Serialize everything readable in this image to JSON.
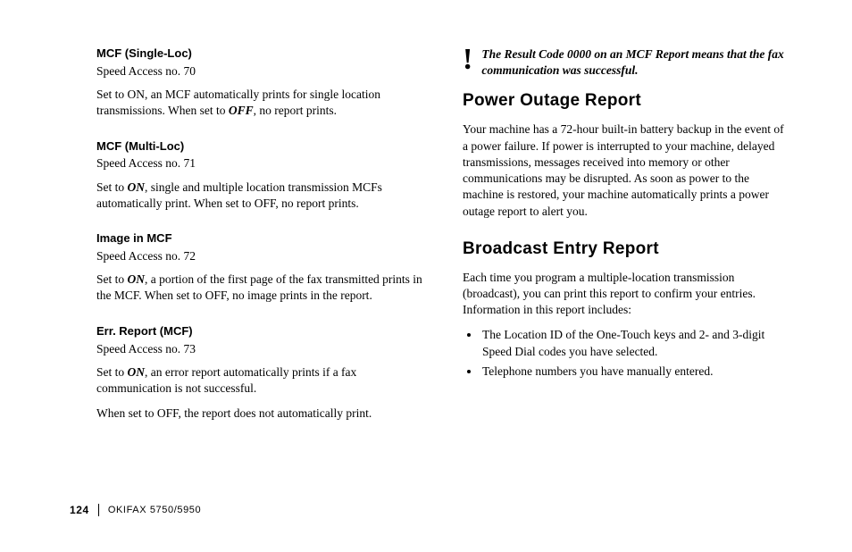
{
  "left": {
    "s1": {
      "title": "MCF (Single-Loc)",
      "access": "Speed Access no. 70",
      "bodyA": "Set to ON, an MCF automatically prints for single location transmissions. When set to ",
      "bodyEm": "OFF",
      "bodyB": ", no report prints."
    },
    "s2": {
      "title": "MCF (Multi-Loc)",
      "access": "Speed Access no. 71",
      "bodyA": "Set to ",
      "bodyEm": "ON",
      "bodyB": ", single and multiple location transmission MCFs automatically print. When set to OFF, no report prints."
    },
    "s3": {
      "title": "Image in MCF",
      "access": "Speed Access no. 72",
      "bodyA": "Set to ",
      "bodyEm": "ON",
      "bodyB": ", a portion of the first page of the fax transmitted prints in the MCF. When set to OFF, no image prints in the report."
    },
    "s4": {
      "title": "Err. Report (MCF)",
      "access": "Speed Access no. 73",
      "bodyA": "Set to ",
      "bodyEm": "ON",
      "bodyB": ", an error report automatically prints if a fax communication is not successful.",
      "body2": "When set to OFF, the report does not automatically print."
    }
  },
  "right": {
    "note": {
      "icon": "!",
      "text": "The Result Code 0000 on an MCF Report means that the fax communication was successful."
    },
    "h1": "Power Outage Report",
    "p1": "Your machine has a 72-hour built-in battery backup in the event of a power failure. If power is interrupted to your machine, delayed transmissions, messages received into memory or other communications may be disrupted. As soon as power to the machine is restored, your machine automatically prints a power outage report to alert you.",
    "h2": "Broadcast Entry Report",
    "p2": "Each time you program a multiple-location transmission (broadcast), you can print this report to confirm your entries. Information in this report includes:",
    "b1": "The Location ID of the One-Touch keys and 2- and 3-digit Speed Dial codes you have selected.",
    "b2": "Telephone numbers you have manually entered."
  },
  "footer": {
    "page": "124",
    "model": "OKIFAX 5750/5950"
  }
}
